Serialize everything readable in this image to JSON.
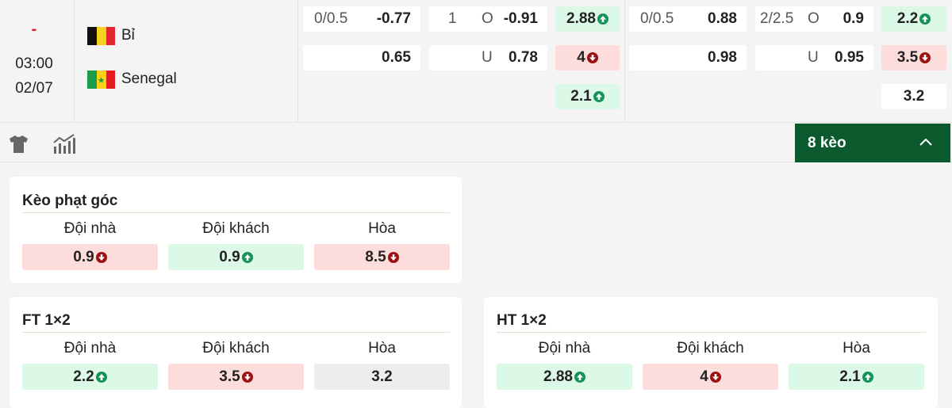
{
  "match": {
    "status": "-",
    "time": "03:00",
    "date": "02/07",
    "home": "Bỉ",
    "away": "Senegal"
  },
  "odds": [
    {
      "type": "handicap",
      "rows": [
        {
          "line": "0/0.5",
          "price": "-0.77"
        },
        {
          "price": "0.65"
        }
      ]
    },
    {
      "type": "total",
      "rows": [
        {
          "line": "1",
          "side": "O",
          "price": "-0.91"
        },
        {
          "side": "U",
          "price": "0.78"
        }
      ]
    },
    {
      "type": "1x2",
      "rows": [
        {
          "value": "2.88",
          "trend": "up"
        },
        {
          "value": "4",
          "trend": "down"
        },
        {
          "value": "2.1",
          "trend": "up"
        }
      ]
    },
    {
      "type": "handicap",
      "rows": [
        {
          "line": "0/0.5",
          "price": "0.88"
        },
        {
          "price": "0.98"
        }
      ]
    },
    {
      "type": "total",
      "rows": [
        {
          "line": "2/2.5",
          "side": "O",
          "price": "0.9"
        },
        {
          "side": "U",
          "price": "0.95"
        }
      ]
    },
    {
      "type": "1x2",
      "rows": [
        {
          "value": "2.2",
          "trend": "up"
        },
        {
          "value": "3.5",
          "trend": "down"
        },
        {
          "value": "3.2",
          "trend": null
        }
      ]
    }
  ],
  "toolbar": {
    "more": "8 kèo"
  },
  "panels": [
    {
      "title": "Kèo phạt góc",
      "headers": [
        "Đội nhà",
        "Đội khách",
        "Hòa"
      ],
      "odds": [
        {
          "value": "0.9",
          "trend": "down"
        },
        {
          "value": "0.9",
          "trend": "up"
        },
        {
          "value": "8.5",
          "trend": "down"
        }
      ]
    },
    {
      "title": "FT 1×2",
      "headers": [
        "Đội nhà",
        "Đội khách",
        "Hòa"
      ],
      "odds": [
        {
          "value": "2.2",
          "trend": "up"
        },
        {
          "value": "3.5",
          "trend": "down"
        },
        {
          "value": "3.2",
          "trend": null
        }
      ]
    },
    {
      "title": "HT 1×2",
      "headers": [
        "Đội nhà",
        "Đội khách",
        "Hòa"
      ],
      "odds": [
        {
          "value": "2.88",
          "trend": "up"
        },
        {
          "value": "4",
          "trend": "down"
        },
        {
          "value": "2.1",
          "trend": "up"
        }
      ]
    }
  ]
}
